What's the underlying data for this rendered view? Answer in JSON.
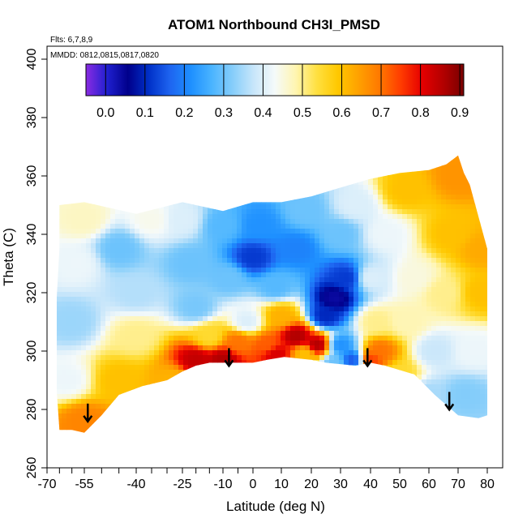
{
  "chart_data": {
    "type": "heatmap",
    "title": "ATOM1 Northbound CH3I_PMSD",
    "annotations": [
      "Flts: 6,7,8,9",
      "MMDD: 0812,0815,0817,0820"
    ],
    "xlabel": "Latitude (deg N)",
    "ylabel": "Theta (C)",
    "xlim": [
      -70,
      80
    ],
    "ylim": [
      260,
      400
    ],
    "x_major_ticks": [
      -70,
      -55,
      -40,
      -25,
      -10,
      0,
      10,
      20,
      30,
      40,
      50,
      60,
      70,
      80
    ],
    "x_tick_labels": [
      "-70",
      "-55",
      "-40",
      "-25",
      "-10",
      "0",
      "10",
      "20",
      "30",
      "40",
      "50",
      "60",
      "70",
      "80"
    ],
    "x_minor_ticks": [
      -65,
      -60,
      -50,
      -45,
      -35,
      -30,
      -20,
      -15,
      -5
    ],
    "y_ticks": [
      260,
      280,
      300,
      320,
      340,
      360,
      380,
      400
    ],
    "y_tick_labels": [
      "260",
      "280",
      "300",
      "320",
      "340",
      "360",
      "380",
      "400"
    ],
    "colorbar": {
      "ticks": [
        0.0,
        0.1,
        0.2,
        0.3,
        0.4,
        0.5,
        0.6,
        0.7,
        0.8,
        0.9
      ],
      "tick_labels": [
        "0.0",
        "0.1",
        "0.2",
        "0.3",
        "0.4",
        "0.5",
        "0.6",
        "0.7",
        "0.8",
        "0.9"
      ],
      "range": [
        -0.05,
        0.91
      ],
      "colors": [
        "#8a2be2",
        "#2020d0",
        "#00008b",
        "#0030c8",
        "#1e64f0",
        "#1e90ff",
        "#4ab4ff",
        "#87cefa",
        "#c8e6fa",
        "#f5fafa",
        "#fff5b0",
        "#ffe040",
        "#ffc800",
        "#ffa000",
        "#ff7800",
        "#ff3c00",
        "#e60000",
        "#b40000",
        "#780000"
      ]
    },
    "domain_top": [
      [
        -65,
        350
      ],
      [
        -55,
        351
      ],
      [
        -40,
        347
      ],
      [
        -25,
        351
      ],
      [
        -10,
        348
      ],
      [
        0,
        351
      ],
      [
        10,
        351
      ],
      [
        20,
        353
      ],
      [
        30,
        356
      ],
      [
        40,
        359
      ],
      [
        50,
        361
      ],
      [
        60,
        362
      ],
      [
        66,
        364
      ],
      [
        70,
        367
      ],
      [
        72,
        361
      ],
      [
        74,
        357
      ],
      [
        80,
        335
      ]
    ],
    "domain_bottom": [
      [
        80,
        278
      ],
      [
        77,
        277
      ],
      [
        70,
        278
      ],
      [
        62,
        285
      ],
      [
        55,
        292
      ],
      [
        45,
        295
      ],
      [
        40,
        296
      ],
      [
        35,
        295
      ],
      [
        25,
        296
      ],
      [
        20,
        297
      ],
      [
        11,
        298
      ],
      [
        5,
        297
      ],
      [
        0,
        296
      ],
      [
        -5,
        296
      ],
      [
        -15,
        296
      ],
      [
        -20,
        295
      ],
      [
        -25,
        293
      ],
      [
        -30,
        290
      ],
      [
        -38,
        288
      ],
      [
        -45,
        285
      ],
      [
        -50,
        278
      ],
      [
        -55,
        272
      ],
      [
        -60,
        273
      ],
      [
        -65,
        273
      ]
    ],
    "domain_left": [
      [
        -65,
        273
      ],
      [
        -66,
        285
      ],
      [
        -67,
        305
      ],
      [
        -66,
        320
      ],
      [
        -65,
        335
      ],
      [
        -65,
        350
      ]
    ],
    "field_anchors": [
      {
        "lat": -55,
        "theta": 276,
        "value": 0.68
      },
      {
        "lat": -62,
        "theta": 290,
        "value": 0.42
      },
      {
        "lat": -60,
        "theta": 310,
        "value": 0.34
      },
      {
        "lat": -58,
        "theta": 330,
        "value": 0.42
      },
      {
        "lat": -55,
        "theta": 345,
        "value": 0.47
      },
      {
        "lat": -45,
        "theta": 290,
        "value": 0.6
      },
      {
        "lat": -40,
        "theta": 305,
        "value": 0.5
      },
      {
        "lat": -40,
        "theta": 320,
        "value": 0.36
      },
      {
        "lat": -45,
        "theta": 335,
        "value": 0.3
      },
      {
        "lat": -35,
        "theta": 345,
        "value": 0.44
      },
      {
        "lat": -28,
        "theta": 290,
        "value": 0.62
      },
      {
        "lat": -20,
        "theta": 297,
        "value": 0.84
      },
      {
        "lat": -10,
        "theta": 297,
        "value": 0.86
      },
      {
        "lat": -15,
        "theta": 305,
        "value": 0.55
      },
      {
        "lat": -20,
        "theta": 315,
        "value": 0.31
      },
      {
        "lat": -22,
        "theta": 330,
        "value": 0.3
      },
      {
        "lat": -25,
        "theta": 345,
        "value": 0.4
      },
      {
        "lat": -5,
        "theta": 303,
        "value": 0.7
      },
      {
        "lat": -2,
        "theta": 310,
        "value": 0.4
      },
      {
        "lat": -8,
        "theta": 325,
        "value": 0.3
      },
      {
        "lat": -10,
        "theta": 343,
        "value": 0.28
      },
      {
        "lat": 5,
        "theta": 302,
        "value": 0.72
      },
      {
        "lat": 8,
        "theta": 299,
        "value": 0.82
      },
      {
        "lat": 15,
        "theta": 305,
        "value": 0.86
      },
      {
        "lat": 18,
        "theta": 299,
        "value": 0.6
      },
      {
        "lat": 22,
        "theta": 302,
        "value": 0.86
      },
      {
        "lat": 10,
        "theta": 312,
        "value": 0.62
      },
      {
        "lat": 8,
        "theta": 322,
        "value": 0.28
      },
      {
        "lat": 0,
        "theta": 332,
        "value": 0.12
      },
      {
        "lat": 2,
        "theta": 343,
        "value": 0.22
      },
      {
        "lat": 15,
        "theta": 335,
        "value": 0.2
      },
      {
        "lat": 18,
        "theta": 348,
        "value": 0.3
      },
      {
        "lat": 28,
        "theta": 318,
        "value": 0.04
      },
      {
        "lat": 25,
        "theta": 312,
        "value": 0.1
      },
      {
        "lat": 32,
        "theta": 325,
        "value": 0.12
      },
      {
        "lat": 30,
        "theta": 302,
        "value": 0.22
      },
      {
        "lat": 28,
        "theta": 296,
        "value": 0.3
      },
      {
        "lat": 34,
        "theta": 297,
        "value": 0.15
      },
      {
        "lat": 30,
        "theta": 340,
        "value": 0.3
      },
      {
        "lat": 35,
        "theta": 350,
        "value": 0.4
      },
      {
        "lat": 40,
        "theta": 297,
        "value": 0.75
      },
      {
        "lat": 43,
        "theta": 300,
        "value": 0.7
      },
      {
        "lat": 42,
        "theta": 310,
        "value": 0.5
      },
      {
        "lat": 40,
        "theta": 325,
        "value": 0.4
      },
      {
        "lat": 45,
        "theta": 340,
        "value": 0.42
      },
      {
        "lat": 50,
        "theta": 292,
        "value": 0.55
      },
      {
        "lat": 52,
        "theta": 310,
        "value": 0.48
      },
      {
        "lat": 55,
        "theta": 325,
        "value": 0.45
      },
      {
        "lat": 52,
        "theta": 355,
        "value": 0.6
      },
      {
        "lat": 60,
        "theta": 285,
        "value": 0.35
      },
      {
        "lat": 62,
        "theta": 300,
        "value": 0.38
      },
      {
        "lat": 65,
        "theta": 320,
        "value": 0.5
      },
      {
        "lat": 68,
        "theta": 340,
        "value": 0.6
      },
      {
        "lat": 70,
        "theta": 360,
        "value": 0.66
      },
      {
        "lat": 72,
        "theta": 285,
        "value": 0.32
      },
      {
        "lat": 75,
        "theta": 300,
        "value": 0.42
      },
      {
        "lat": 78,
        "theta": 320,
        "value": 0.6
      },
      {
        "lat": 78,
        "theta": 335,
        "value": 0.63
      }
    ],
    "arrows": [
      {
        "lat": -54,
        "theta": 282,
        "direction": "down"
      },
      {
        "lat": -8,
        "theta": 301,
        "direction": "down"
      },
      {
        "lat": 39,
        "theta": 301,
        "direction": "down"
      },
      {
        "lat": 67,
        "theta": 286,
        "direction": "down"
      }
    ]
  }
}
